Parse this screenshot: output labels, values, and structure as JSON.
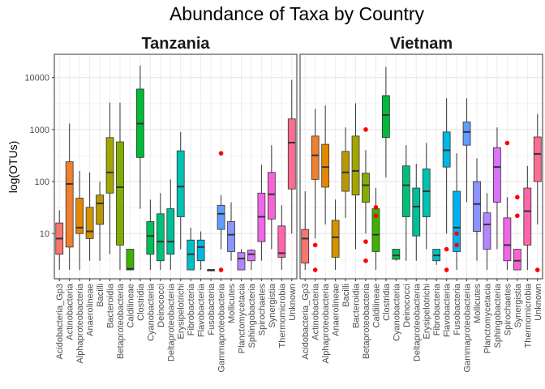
{
  "chart_data": {
    "type": "boxplot",
    "title": "Abundance of Taxa by Country",
    "xlabel": "",
    "ylabel": "log(OTUs)",
    "y_scale": "log10",
    "ylim": [
      1.35,
      28000
    ],
    "y_ticks": [
      10,
      100,
      1000,
      10000
    ],
    "y_tick_labels": [
      "10",
      "100",
      "1000",
      "10000"
    ],
    "grid": true,
    "outlier_color": "#ff0000",
    "colors": {
      "Acidobacteria_Gp3": "#f8766d",
      "Actinobacteria": "#f07f2e",
      "Alphaproteobacteria": "#e58700",
      "Anaerolineae": "#d39200",
      "Bacilli": "#b89a00",
      "Bacteroidia": "#a3a500",
      "Betaproteobacteria": "#83ad00",
      "Caldilineae": "#3bb300",
      "Clostridia": "#00ba38",
      "Cyanobacteria": "#00bf56",
      "Deinococci": "#00c079",
      "Deltaproteobacteria": "#00bf96",
      "Erysipelotrichi": "#00c1b2",
      "Fibrobacteria": "#00bfc4",
      "Flavobacteria": "#00b9e3",
      "Fusobacteria": "#00b0f6",
      "Gammaproteobacteria": "#619cff",
      "Mollicutes": "#8a93ff",
      "Planctomycetacia": "#b385ff",
      "Sphingobacteria": "#db72fb",
      "Spirochaetes": "#f066ea",
      "Synergistia": "#fb61d7",
      "Thermomicrobia": "#ff65ac",
      "Unknown": "#ff6c91"
    },
    "panels": [
      {
        "name": "Tanzania",
        "categories": [
          "Acidobacteria_Gp3",
          "Actinobacteria",
          "Alphaproteobacteria",
          "Anaerolineae",
          "Bacilli",
          "Bacteroidia",
          "Betaproteobacteria",
          "Caldilineae",
          "Clostridia",
          "Cyanobacteria",
          "Deinococci",
          "Deltaproteobacteria",
          "Erysipelotrichi",
          "Fibrobacteria",
          "Flavobacteria",
          "Fusobacteria",
          "Gammaproteobacteria",
          "Mollicutes",
          "Planctomycetacia",
          "Sphingobacteria",
          "Spirochaetes",
          "Synergistia",
          "Thermomicrobia",
          "Unknown"
        ],
        "boxes": [
          {
            "min": 2.0,
            "q1": 4.0,
            "median": 8.0,
            "q3": 16.0,
            "max": 28.0,
            "outliers": []
          },
          {
            "min": 2.0,
            "q1": 5.5,
            "median": 90.0,
            "q3": 240.0,
            "max": 1300.0,
            "outliers": []
          },
          {
            "min": 2.0,
            "q1": 10.0,
            "median": 13.0,
            "q3": 48.0,
            "max": 160.0,
            "outliers": []
          },
          {
            "min": 3.0,
            "q1": 8.0,
            "median": 11.0,
            "q3": 32.0,
            "max": 150.0,
            "outliers": []
          },
          {
            "min": 3.0,
            "q1": 15.0,
            "median": 38.0,
            "q3": 55.0,
            "max": 100.0,
            "outliers": []
          },
          {
            "min": 4.0,
            "q1": 60.0,
            "median": 150.0,
            "q3": 700.0,
            "max": 3300.0,
            "outliers": []
          },
          {
            "min": 2.0,
            "q1": 6.0,
            "median": 78.0,
            "q3": 580.0,
            "max": 3300.0,
            "outliers": []
          },
          {
            "min": 2.0,
            "q1": 2.0,
            "median": 2.1,
            "q3": 5.0,
            "max": 5.0,
            "outliers": []
          },
          {
            "min": 30.0,
            "q1": 290.0,
            "median": 1300.0,
            "q3": 6000.0,
            "max": 17000.0,
            "outliers": []
          },
          {
            "min": 2.0,
            "q1": 4.0,
            "median": 9.0,
            "q3": 17.0,
            "max": 45.0,
            "outliers": []
          },
          {
            "min": 2.0,
            "q1": 3.0,
            "median": 7.0,
            "q3": 24.0,
            "max": 60.0,
            "outliers": []
          },
          {
            "min": 2.0,
            "q1": 4.0,
            "median": 7.0,
            "q3": 30.0,
            "max": 110.0,
            "outliers": []
          },
          {
            "min": 5.0,
            "q1": 21.0,
            "median": 80.0,
            "q3": 390.0,
            "max": 900.0,
            "outliers": []
          },
          {
            "min": 2.0,
            "q1": 2.0,
            "median": 4.0,
            "q3": 7.5,
            "max": 13.0,
            "outliers": []
          },
          {
            "min": 2.0,
            "q1": 3.0,
            "median": 5.5,
            "q3": 7.5,
            "max": 11.0,
            "outliers": []
          },
          {
            "min": 2.0,
            "q1": 2.0,
            "median": 2.0,
            "q3": 2.0,
            "max": 2.0,
            "outliers": []
          },
          {
            "min": 5.0,
            "q1": 12.0,
            "median": 24.0,
            "q3": 35.0,
            "max": 55.0,
            "outliers": [
              350.0,
              2.0
            ]
          },
          {
            "min": 3.0,
            "q1": 4.5,
            "median": 9.5,
            "q3": 17.0,
            "max": 40.0,
            "outliers": []
          },
          {
            "min": 2.0,
            "q1": 2.0,
            "median": 3.3,
            "q3": 4.3,
            "max": 5.0,
            "outliers": []
          },
          {
            "min": 2.0,
            "q1": 3.0,
            "median": 4.0,
            "q3": 4.8,
            "max": 5.0,
            "outliers": []
          },
          {
            "min": 3.0,
            "q1": 7.0,
            "median": 21.0,
            "q3": 60.0,
            "max": 210.0,
            "outliers": []
          },
          {
            "min": 5.0,
            "q1": 19.0,
            "median": 57.0,
            "q3": 150.0,
            "max": 500.0,
            "outliers": []
          },
          {
            "min": 2.0,
            "q1": 3.5,
            "median": 4.2,
            "q3": 14.0,
            "max": 35.0,
            "outliers": []
          },
          {
            "min": 10.0,
            "q1": 72.0,
            "median": 560.0,
            "q3": 1600.0,
            "max": 9000.0,
            "outliers": []
          }
        ]
      },
      {
        "name": "Vietnam",
        "categories": [
          "Acidobacteria_Gp3",
          "Actinobacteria",
          "Alphaproteobacteria",
          "Anaerolineae",
          "Bacilli",
          "Bacteroidia",
          "Betaproteobacteria",
          "Caldilineae",
          "Clostridia",
          "Cyanobacteria",
          "Deinococci",
          "Deltaproteobacteria",
          "Erysipelotrichi",
          "Fibrobacteria",
          "Flavobacteria",
          "Fusobacteria",
          "Gammaproteobacteria",
          "Mollicutes",
          "Planctomycetacia",
          "Sphingobacteria",
          "Spirochaetes",
          "Synergistia",
          "Thermomicrobia",
          "Unknown"
        ],
        "boxes": [
          {
            "min": 2.0,
            "q1": 2.7,
            "median": 8.0,
            "q3": 12.0,
            "max": 65.0,
            "outliers": []
          },
          {
            "min": 8.0,
            "q1": 110.0,
            "median": 320.0,
            "q3": 750.0,
            "max": 2500.0,
            "outliers": [
              6.0,
              2.0
            ]
          },
          {
            "min": 15.0,
            "q1": 78.0,
            "median": 190.0,
            "q3": 520.0,
            "max": 2900.0,
            "outliers": []
          },
          {
            "min": 2.0,
            "q1": 3.5,
            "median": 8.5,
            "q3": 18.0,
            "max": 45.0,
            "outliers": []
          },
          {
            "min": 20.0,
            "q1": 65.0,
            "median": 150.0,
            "q3": 380.0,
            "max": 1100.0,
            "outliers": []
          },
          {
            "min": 5.0,
            "q1": 55.0,
            "median": 160.0,
            "q3": 750.0,
            "max": 3200.0,
            "outliers": []
          },
          {
            "min": 10.0,
            "q1": 40.0,
            "median": 85.0,
            "q3": 145.0,
            "max": 400.0,
            "outliers": [
              1000.0,
              7.0,
              3.0
            ]
          },
          {
            "min": 2.0,
            "q1": 4.5,
            "median": 9.5,
            "q3": 30.0,
            "max": 75.0,
            "outliers": [
              32.0,
              22.0
            ]
          },
          {
            "min": 120.0,
            "q1": 700.0,
            "median": 1900.0,
            "q3": 4500.0,
            "max": 16000.0,
            "outliers": []
          },
          {
            "min": 3.0,
            "q1": 3.2,
            "median": 3.8,
            "q3": 5.0,
            "max": 5.0,
            "outliers": []
          },
          {
            "min": 3.0,
            "q1": 21.0,
            "median": 85.0,
            "q3": 200.0,
            "max": 500.0,
            "outliers": []
          },
          {
            "min": 3.0,
            "q1": 9.0,
            "median": 33.0,
            "q3": 75.0,
            "max": 220.0,
            "outliers": []
          },
          {
            "min": 5.0,
            "q1": 21.0,
            "median": 65.0,
            "q3": 175.0,
            "max": 550.0,
            "outliers": []
          },
          {
            "min": 2.5,
            "q1": 3.0,
            "median": 3.8,
            "q3": 5.0,
            "max": 5.0,
            "outliers": []
          },
          {
            "min": 10.0,
            "q1": 190.0,
            "median": 400.0,
            "q3": 900.0,
            "max": 4000.0,
            "outliers": [
              5.0,
              2.0
            ]
          },
          {
            "min": 2.0,
            "q1": 4.5,
            "median": 13.0,
            "q3": 65.0,
            "max": 350.0,
            "outliers": [
              10.0,
              6.0
            ]
          },
          {
            "min": 40.0,
            "q1": 500.0,
            "median": 900.0,
            "q3": 1400.0,
            "max": 4000.0,
            "outliers": []
          },
          {
            "min": 3.0,
            "q1": 11.0,
            "median": 37.0,
            "q3": 100.0,
            "max": 280.0,
            "outliers": []
          },
          {
            "min": 2.0,
            "q1": 5.0,
            "median": 15.0,
            "q3": 25.0,
            "max": 60.0,
            "outliers": []
          },
          {
            "min": 5.0,
            "q1": 40.0,
            "median": 190.0,
            "q3": 450.0,
            "max": 1100.0,
            "outliers": []
          },
          {
            "min": 2.0,
            "q1": 3.0,
            "median": 6.0,
            "q3": 20.0,
            "max": 50.0,
            "outliers": [
              550.0
            ]
          },
          {
            "min": 2.0,
            "q1": 2.0,
            "median": 3.0,
            "q3": 5.0,
            "max": 5.0,
            "outliers": [
              50.0,
              22.0
            ]
          },
          {
            "min": 2.0,
            "q1": 6.0,
            "median": 27.0,
            "q3": 75.0,
            "max": 200.0,
            "outliers": []
          },
          {
            "min": 15.0,
            "q1": 100.0,
            "median": 340.0,
            "q3": 720.0,
            "max": 2000.0,
            "outliers": [
              2.0
            ]
          }
        ]
      }
    ]
  }
}
